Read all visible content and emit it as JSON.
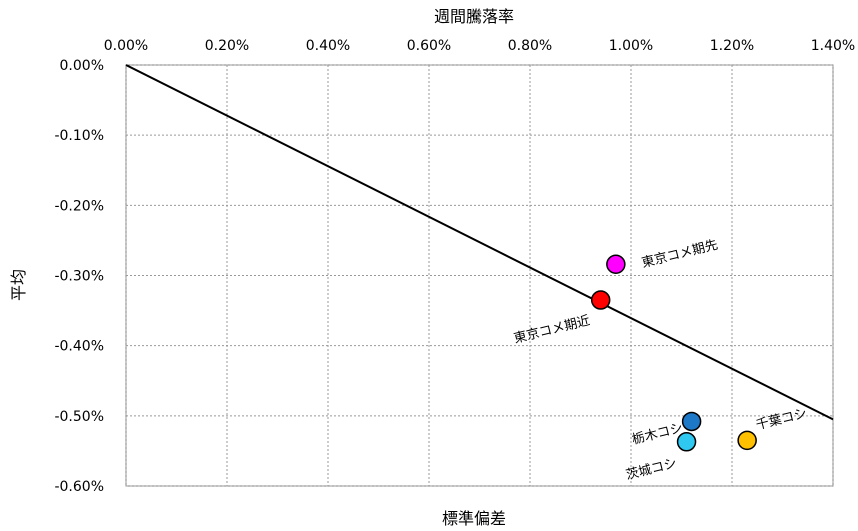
{
  "chart_data": {
    "type": "scatter",
    "title": "週間騰落率",
    "xlabel": "標準偏差",
    "ylabel": "平均",
    "xlim": [
      0,
      0.014
    ],
    "ylim": [
      -0.006,
      0
    ],
    "x_ticks": [
      "0.00%",
      "0.20%",
      "0.40%",
      "0.60%",
      "0.80%",
      "1.00%",
      "1.20%",
      "1.40%"
    ],
    "y_ticks": [
      "0.00%",
      "-0.10%",
      "-0.20%",
      "-0.30%",
      "-0.40%",
      "-0.50%",
      "-0.60%"
    ],
    "x_tick_values": [
      0,
      0.002,
      0.004,
      0.006,
      0.008,
      0.01,
      0.012,
      0.014
    ],
    "y_tick_values": [
      0,
      -0.001,
      -0.002,
      -0.003,
      -0.004,
      -0.005,
      -0.006
    ],
    "grid": true,
    "x_axis_position": "top",
    "trend_line": {
      "x": [
        0,
        0.014
      ],
      "y": [
        0,
        -0.00505
      ]
    },
    "points": [
      {
        "label": "東京コメ期先",
        "x": 0.0097,
        "y": -0.00284,
        "color": "#ff00ff"
      },
      {
        "label": "東京コメ期近",
        "x": 0.0094,
        "y": -0.00335,
        "color": "#ff0000"
      },
      {
        "label": "栃木コシ",
        "x": 0.0112,
        "y": -0.00508,
        "color": "#1e78c8"
      },
      {
        "label": "茨城コシ",
        "x": 0.0111,
        "y": -0.00537,
        "color": "#2ec8f0"
      },
      {
        "label": "千葉コシ",
        "x": 0.0123,
        "y": -0.00535,
        "color": "#ffc000"
      }
    ]
  }
}
